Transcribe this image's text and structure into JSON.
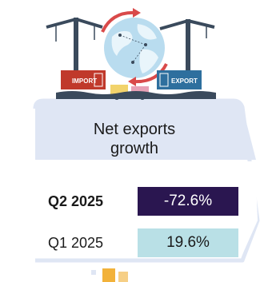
{
  "illustration": {
    "import_label": "IMPORT",
    "export_label": "EXPORT"
  },
  "card": {
    "title_line1": "Net exports",
    "title_line2": "growth"
  },
  "rows": [
    {
      "period": "Q2 2025",
      "value": "-72.6%",
      "color": "#2a1650"
    },
    {
      "period": "Q1 2025",
      "value": "19.6%",
      "color": "#b9e0e6"
    }
  ],
  "colors": {
    "card_fill": "#ffffff",
    "card_header": "#dfe6f4",
    "card_border": "#dfe6f4",
    "accent_arrow": "#d94a4a",
    "bottom_marker": "#f2b23a"
  }
}
